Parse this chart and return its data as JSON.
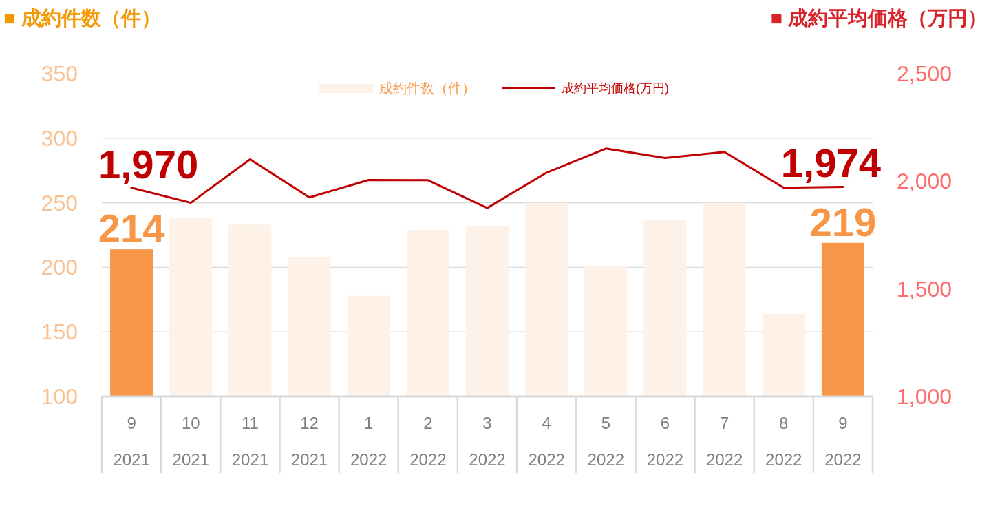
{
  "chart_data": {
    "type": "bar",
    "ylabel": "■ 成約件数（件）",
    "y2label": "■ 成約平均価格（万円）",
    "categories": [
      "9\n2021",
      "10\n2021",
      "11\n2021",
      "12\n2021",
      "1\n2022",
      "2\n2022",
      "3\n2022",
      "4\n2022",
      "5\n2022",
      "6\n2022",
      "7\n2022",
      "8\n2022",
      "9\n2022"
    ],
    "series": [
      {
        "name": "成約件数（件）",
        "color": "#fdf1e8",
        "colors": [
          "#f79646",
          "#fdf1e8",
          "#fdf1e8",
          "#fdf1e8",
          "#fdf1e8",
          "#fdf1e8",
          "#fdf1e8",
          "#fdf1e8",
          "#fdf1e8",
          "#fdf1e8",
          "#fdf1e8",
          "#fdf1e8",
          "#f79646"
        ],
        "values": [
          214,
          238,
          233,
          208,
          178,
          229,
          232,
          250,
          201,
          237,
          250,
          164,
          219
        ],
        "value_labels": [
          "214",
          null,
          null,
          null,
          null,
          null,
          null,
          null,
          null,
          null,
          null,
          null,
          "219"
        ]
      },
      {
        "name": "成約平均価格(万円)",
        "type": "line",
        "axis": "y2",
        "color": "#c00000",
        "values": [
          1970,
          1900,
          2102,
          1925,
          2006,
          2005,
          1876,
          2040,
          2152,
          2108,
          2136,
          1970,
          1974
        ],
        "value_labels": [
          "1,970",
          null,
          null,
          null,
          null,
          null,
          null,
          null,
          null,
          null,
          null,
          null,
          "1,974"
        ]
      }
    ],
    "ylim": [
      100,
      350
    ],
    "yticks": [
      100,
      150,
      200,
      250,
      300,
      350
    ],
    "y2lim": [
      1000,
      2500
    ],
    "y2ticks": [
      {
        "value": 1000,
        "label": "1,000"
      },
      {
        "value": 1500,
        "label": "1,500"
      },
      {
        "value": 2000,
        "label": "2,000"
      },
      {
        "value": 2500,
        "label": "2,500"
      }
    ],
    "grid": "y",
    "legend": "top"
  }
}
